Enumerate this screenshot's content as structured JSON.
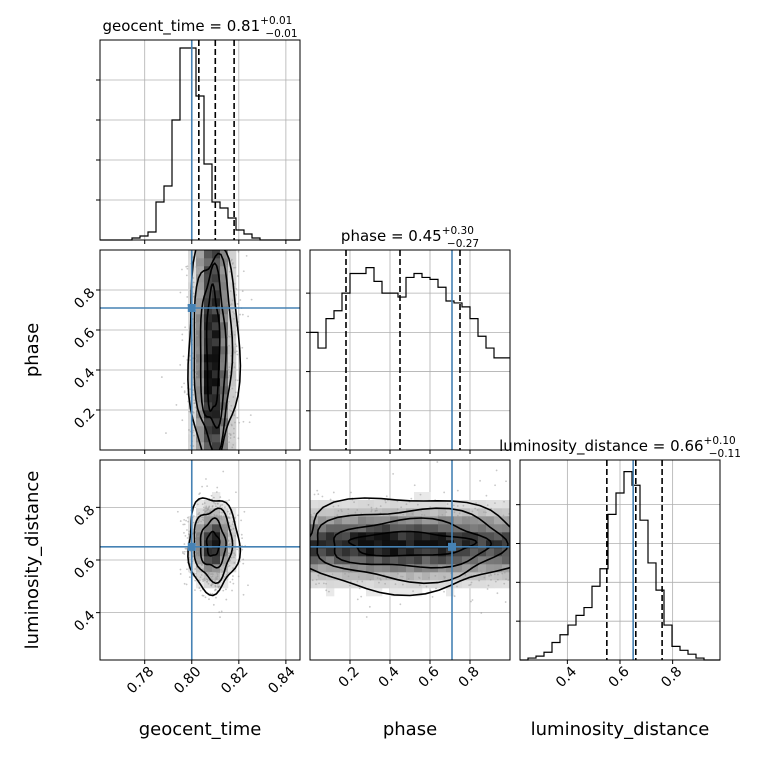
{
  "chart_data": {
    "type": "corner",
    "parameters": [
      "geocent_time",
      "phase",
      "luminosity_distance"
    ],
    "titles": [
      {
        "name": "geocent_time",
        "eq": " = 0.81",
        "plus": "+0.01",
        "minus": "−0.01"
      },
      {
        "name": "phase",
        "eq": " = 0.45",
        "plus": "+0.30",
        "minus": "−0.27"
      },
      {
        "name": "luminosity_distance",
        "eq": " = 0.66",
        "plus": "+0.10",
        "minus": "−0.11"
      }
    ],
    "axis_labels": {
      "x": [
        "geocent_time",
        "phase",
        "luminosity_distance"
      ],
      "y": [
        "phase",
        "luminosity_distance"
      ]
    },
    "ranges": {
      "geocent_time": [
        0.761,
        0.846
      ],
      "phase": [
        0.0,
        1.0
      ],
      "luminosity_distance": [
        0.22,
        0.98
      ]
    },
    "ticks": {
      "geocent_time": [
        0.78,
        0.8,
        0.82,
        0.84
      ],
      "geocent_time_labels": [
        "0.78",
        "0.80",
        "0.82",
        "0.84"
      ],
      "phase": [
        0.2,
        0.4,
        0.6,
        0.8
      ],
      "phase_labels": [
        "0.2",
        "0.4",
        "0.6",
        "0.8"
      ],
      "luminosity_distance": [
        0.4,
        0.6,
        0.8
      ],
      "luminosity_distance_labels": [
        "0.4",
        "0.6",
        "0.8"
      ]
    },
    "truths": {
      "geocent_time": 0.8,
      "phase": 0.71,
      "luminosity_distance": 0.65
    },
    "quantiles": {
      "geocent_time": [
        0.803,
        0.81,
        0.818
      ],
      "phase": [
        0.18,
        0.45,
        0.75
      ],
      "luminosity_distance": [
        0.55,
        0.66,
        0.76
      ]
    },
    "histograms": {
      "geocent_time": {
        "bin_start": 0.761,
        "bin_width": 0.0034,
        "counts": [
          0,
          0,
          0,
          0,
          0.01,
          0.02,
          0.04,
          0.19,
          0.27,
          0.6,
          0.96,
          0.96,
          0.72,
          0.38,
          0.19,
          0.16,
          0.11,
          0.05,
          0.03,
          0.01,
          0,
          0,
          0,
          0,
          0
        ]
      },
      "phase": {
        "bin_start": 0.0,
        "bin_width": 0.04,
        "counts": [
          0.6,
          0.52,
          0.67,
          0.71,
          0.8,
          0.9,
          0.9,
          0.93,
          0.86,
          0.8,
          0.8,
          0.78,
          0.88,
          0.9,
          0.88,
          0.87,
          0.83,
          0.76,
          0.75,
          0.73,
          0.67,
          0.58,
          0.52,
          0.47,
          0.47
        ]
      },
      "luminosity_distance": {
        "bin_start": 0.22,
        "bin_width": 0.0304,
        "counts": [
          0,
          0.01,
          0.02,
          0.04,
          0.09,
          0.13,
          0.18,
          0.23,
          0.27,
          0.38,
          0.47,
          0.75,
          0.86,
          0.97,
          0.9,
          0.72,
          0.5,
          0.36,
          0.18,
          0.07,
          0.05,
          0.03,
          0.01,
          0,
          0
        ]
      }
    },
    "hist_ymax": {
      "geocent_time": 1.0,
      "phase": 1.02,
      "luminosity_distance": 1.03
    },
    "colors": {
      "truth": "#4682b4",
      "hist": "#000000",
      "density": "#000000",
      "points": "#9a9a9a",
      "grid": "#b0b0b0"
    },
    "grid": true
  }
}
